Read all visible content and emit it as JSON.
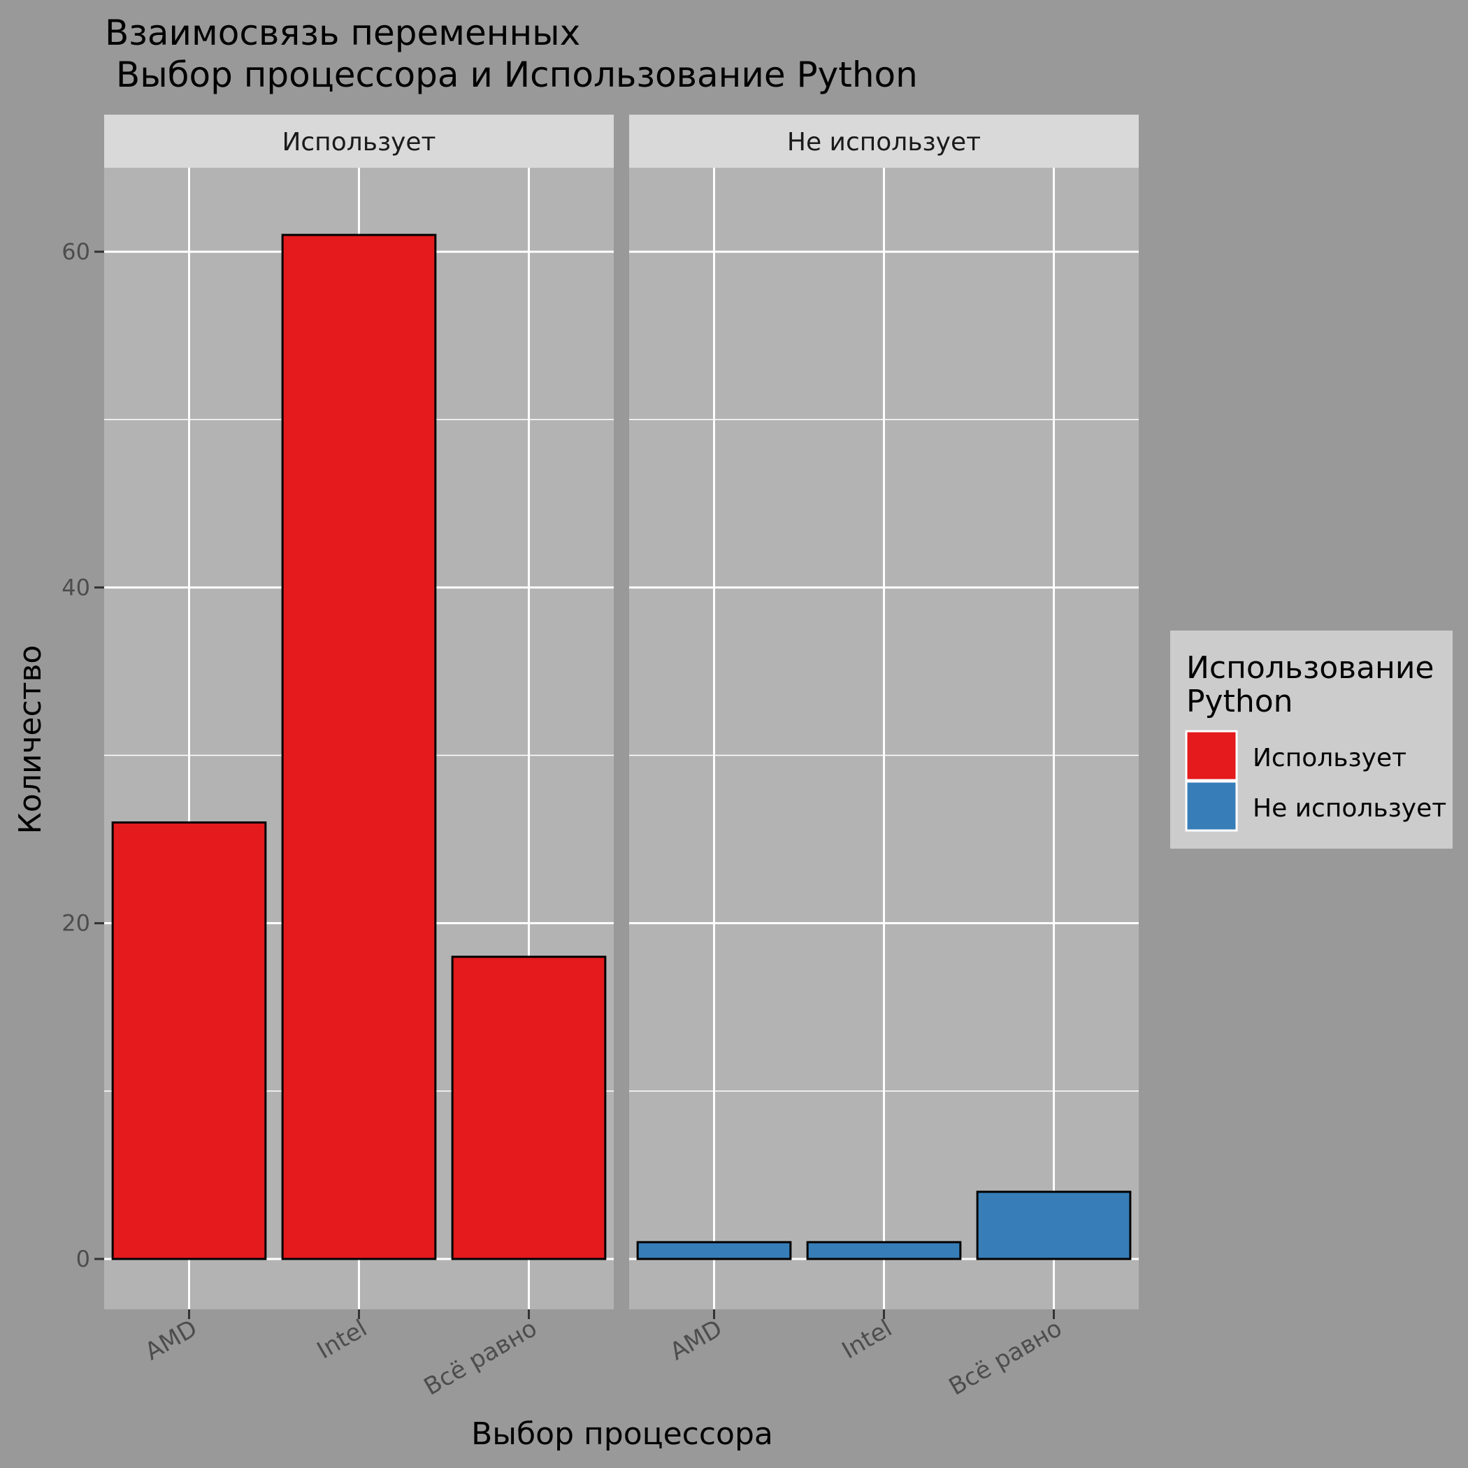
{
  "chart_data": {
    "type": "bar",
    "title_lines": [
      "Взаимосвязь переменных",
      " Выбор процессора и Использование Python"
    ],
    "xlabel": "Выбор процессора",
    "ylabel": "Количество",
    "categories": [
      "AMD",
      "Intel",
      "Всё равно"
    ],
    "ylim": [
      -3,
      65
    ],
    "yticks": [
      0,
      20,
      40,
      60
    ],
    "panels": [
      {
        "name": "Использует",
        "values": [
          26,
          61,
          18
        ],
        "color": "#E41A1C"
      },
      {
        "name": "Не использует",
        "values": [
          1,
          1,
          4
        ],
        "color": "#377EB8"
      }
    ],
    "legend": {
      "title_lines": [
        "Использование",
        "Python"
      ],
      "position": "right",
      "items": [
        {
          "label": "Использует",
          "color": "#E41A1C"
        },
        {
          "label": "Не использует",
          "color": "#377EB8"
        }
      ]
    },
    "grid": true
  }
}
